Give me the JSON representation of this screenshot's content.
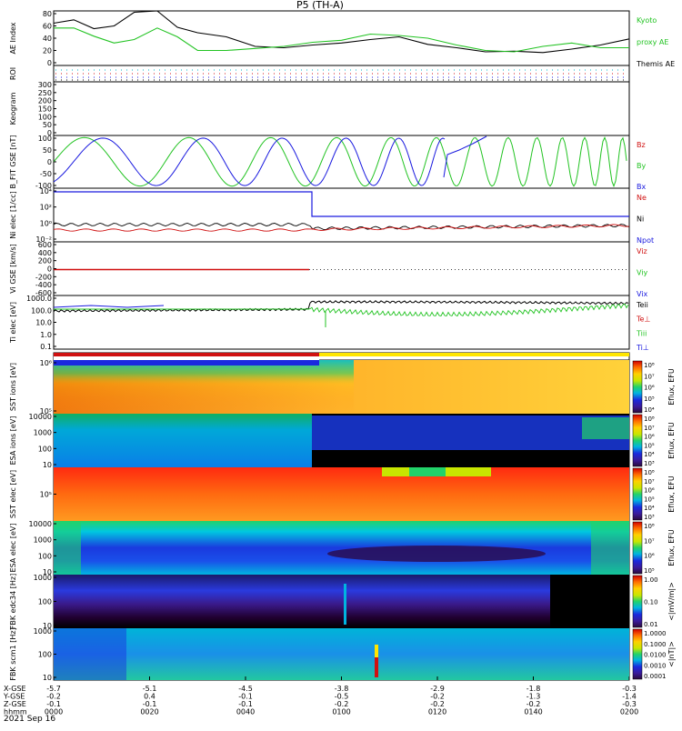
{
  "title": "P5 (TH-A)",
  "date_label": "2021 Sep 16",
  "colors": {
    "black": "#000000",
    "green": "#22c322",
    "blue": "#1a1adf",
    "red": "#d01010",
    "cyan": "#00b4c8",
    "yellow": "#ffe600"
  },
  "chart_data": [
    {
      "type": "line",
      "panel": "ae",
      "ylabel": "AE Index",
      "ylim": [
        0,
        80
      ],
      "yticks": [
        "0",
        "20",
        "40",
        "60",
        "80"
      ],
      "right_labels": [
        {
          "text": "Kyoto",
          "color": "green"
        },
        {
          "text": "proxy AE",
          "color": "green"
        },
        {
          "text": "Themis AE",
          "color": "black"
        }
      ],
      "x_hours": [
        0,
        0.07,
        0.14,
        0.21,
        0.28,
        0.36,
        0.43,
        0.5,
        0.6,
        0.7,
        0.8,
        0.9,
        1.0,
        1.1,
        1.2,
        1.3,
        1.4,
        1.5,
        1.6,
        1.7,
        1.8,
        1.9,
        2.0
      ],
      "series": [
        {
          "name": "Themis AE",
          "color": "black",
          "values": [
            62,
            67,
            54,
            58,
            78,
            80,
            56,
            48,
            42,
            28,
            26,
            30,
            33,
            38,
            42,
            31,
            26,
            20,
            21,
            19,
            24,
            30,
            39
          ]
        },
        {
          "name": "Kyoto proxy AE",
          "color": "green",
          "values": [
            55,
            55,
            43,
            33,
            38,
            55,
            42,
            22,
            22,
            25,
            28,
            34,
            37,
            46,
            44,
            40,
            30,
            22,
            20,
            28,
            33,
            26,
            26
          ]
        }
      ]
    },
    {
      "type": "scatter",
      "panel": "roi",
      "ylabel": "ROI"
    },
    {
      "type": "line",
      "panel": "keogram",
      "ylabel": "Keogram",
      "yticks": [
        "0",
        "50",
        "100",
        "150",
        "200",
        "250",
        "300"
      ]
    },
    {
      "type": "line",
      "panel": "bfit",
      "ylabel": "B_FIT GSE [nT]",
      "ylim": [
        -100,
        100
      ],
      "yticks": [
        "-100",
        "-50",
        "0",
        "50",
        "100"
      ],
      "right_labels": [
        {
          "text": "Bz",
          "color": "red"
        },
        {
          "text": "By",
          "color": "green"
        },
        {
          "text": "Bx",
          "color": "blue"
        }
      ]
    },
    {
      "type": "line",
      "panel": "density",
      "ylabel": "Ni elec [1/cc]",
      "yticks": [
        "10⁻²",
        "10⁰",
        "10²",
        "10⁴"
      ],
      "right_labels": [
        {
          "text": "Ne",
          "color": "red"
        },
        {
          "text": "Ni",
          "color": "black"
        },
        {
          "text": "Npot",
          "color": "blue"
        }
      ]
    },
    {
      "type": "line",
      "panel": "velocity",
      "ylabel": "Vi GSE [km/s]",
      "ylim": [
        -600,
        600
      ],
      "yticks": [
        "-600",
        "-400",
        "-200",
        "0",
        "200",
        "400",
        "600"
      ],
      "right_labels": [
        {
          "text": "Viz",
          "color": "red"
        },
        {
          "text": "Viy",
          "color": "green"
        },
        {
          "text": "Vix",
          "color": "blue"
        }
      ]
    },
    {
      "type": "line",
      "panel": "temperature",
      "ylabel": "Ti elec [eV]",
      "yticks": [
        "0.1",
        "1.0",
        "10.0",
        "100.0",
        "1000.0"
      ],
      "right_labels": [
        {
          "text": "Teii",
          "color": "black"
        },
        {
          "text": "Te⊥",
          "color": "red"
        },
        {
          "text": "Tiii",
          "color": "green"
        },
        {
          "text": "Ti⊥",
          "color": "blue"
        }
      ]
    },
    {
      "type": "heatmap",
      "panel": "sst_ion",
      "ylabel": "SST ions [eV]",
      "yticks": [
        "10⁵",
        "10⁶"
      ],
      "colorbar_ticks": [
        "10⁸",
        "10⁷",
        "10⁶",
        "10⁵",
        "10⁴"
      ],
      "colorbar_label": "Eflux, EFU"
    },
    {
      "type": "heatmap",
      "panel": "esa_ion",
      "ylabel": "ESA ions [eV]",
      "yticks": [
        "10",
        "100",
        "1000",
        "10000"
      ],
      "colorbar_ticks": [
        "10⁸",
        "10⁷",
        "10⁶",
        "10⁵",
        "10⁴",
        "10³"
      ],
      "colorbar_label": "Eflux, EFU"
    },
    {
      "type": "heatmap",
      "panel": "sst_elec",
      "ylabel": "SST elec [eV]",
      "yticks": [
        "10⁵"
      ],
      "colorbar_ticks": [
        "10⁸",
        "10⁷",
        "10⁶",
        "10⁵",
        "10⁴",
        "10³"
      ],
      "colorbar_label": "Eflux, EFU"
    },
    {
      "type": "heatmap",
      "panel": "esa_elec",
      "ylabel": "ESA elec [eV]",
      "yticks": [
        "10",
        "100",
        "1000",
        "10000"
      ],
      "colorbar_ticks": [
        "10⁸",
        "10⁷",
        "10⁶",
        "10⁵"
      ],
      "colorbar_label": "Eflux, EFU"
    },
    {
      "type": "heatmap",
      "panel": "fbk_edc",
      "ylabel": "FBK edc34 [Hz]",
      "yticks": [
        "10",
        "100",
        "1000"
      ],
      "colorbar_ticks": [
        "1.00",
        "0.10",
        "0.01"
      ],
      "colorbar_label": "<|mV/m|>"
    },
    {
      "type": "heatmap",
      "panel": "fbk_scm",
      "ylabel": "FBK scm1 [Hz]",
      "yticks": [
        "10",
        "100",
        "1000"
      ],
      "colorbar_ticks": [
        "1.0000",
        "0.1000",
        "0.0100",
        "0.0010",
        "0.0001"
      ],
      "colorbar_label": "<|nT|>"
    }
  ],
  "xaxis": {
    "row_labels": [
      "X-GSE",
      "Y-GSE",
      "Z-GSE",
      "hhmm"
    ],
    "ticks": [
      {
        "x": "-5.7",
        "y": "-0.2",
        "z": "-0.1",
        "t": "0000"
      },
      {
        "x": "-5.1",
        "y": "0.4",
        "z": "-0.1",
        "t": "0020"
      },
      {
        "x": "-4.5",
        "y": "-0.1",
        "z": "-0.1",
        "t": "0040"
      },
      {
        "x": "-3.8",
        "y": "-0.5",
        "z": "-0.2",
        "t": "0100"
      },
      {
        "x": "-2.9",
        "y": "-0.2",
        "z": "-0.2",
        "t": "0120"
      },
      {
        "x": "-1.8",
        "y": "-1.3",
        "z": "-0.2",
        "t": "0140"
      },
      {
        "x": "-0.3",
        "y": "-1.4",
        "z": "-0.3",
        "t": "0200"
      }
    ]
  }
}
